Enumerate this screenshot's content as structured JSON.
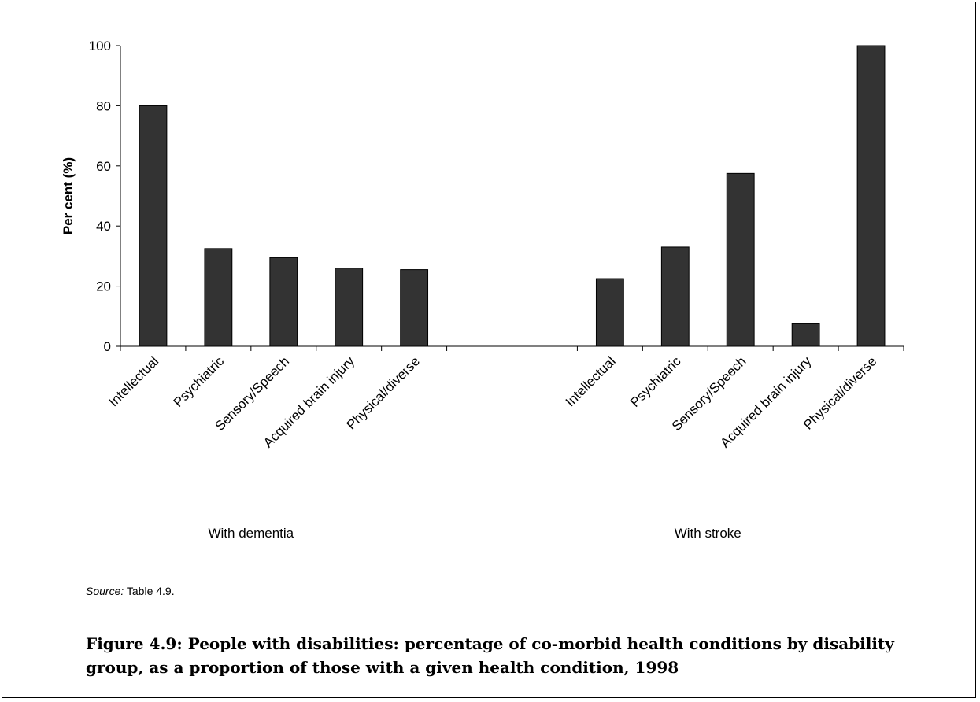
{
  "chart_data": {
    "type": "bar",
    "ylabel": "Per cent  (%)",
    "ylim": [
      0,
      100
    ],
    "yticks": [
      0,
      20,
      40,
      60,
      80,
      100
    ],
    "bar_color": "#333333",
    "groups": [
      {
        "name": "With dementia",
        "categories": [
          "Intellectual",
          "Psychiatric",
          "Sensory/Speech",
          "Acquired brain injury",
          "Physical/diverse"
        ],
        "values": [
          80,
          32.5,
          29.5,
          26,
          25.5
        ]
      },
      {
        "name": "With stroke",
        "categories": [
          "Intellectual",
          "Psychiatric",
          "Sensory/Speech",
          "Acquired brain injury",
          "Physical/diverse"
        ],
        "values": [
          22.5,
          33,
          57.5,
          7.5,
          100
        ]
      }
    ]
  },
  "source": {
    "prefix": "Source:",
    "text": " Table 4.9."
  },
  "caption": "Figure 4.9: People with disabilities: percentage of co-morbid health conditions by disability group, as a proportion of those with a given health condition, 1998"
}
